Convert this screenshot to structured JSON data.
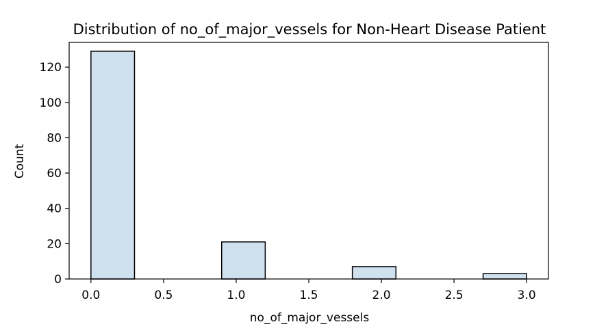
{
  "chart_data": {
    "type": "bar",
    "title": "Distribution of no_of_major_vessels for Non-Heart Disease Patient",
    "xlabel": "no_of_major_vessels",
    "ylabel": "Count",
    "xlim": [
      -0.15,
      3.15
    ],
    "ylim": [
      0,
      134
    ],
    "xticks": [
      0.0,
      0.5,
      1.0,
      1.5,
      2.0,
      2.5,
      3.0
    ],
    "xtick_labels": [
      "0.0",
      "0.5",
      "1.0",
      "1.5",
      "2.0",
      "2.5",
      "3.0"
    ],
    "yticks": [
      0,
      20,
      40,
      60,
      80,
      100,
      120
    ],
    "ytick_labels": [
      "0",
      "20",
      "40",
      "60",
      "80",
      "100",
      "120"
    ],
    "bins": [
      {
        "x_start": 0.0,
        "x_end": 0.3,
        "count": 129
      },
      {
        "x_start": 0.9,
        "x_end": 1.2,
        "count": 21
      },
      {
        "x_start": 1.8,
        "x_end": 2.1,
        "count": 7
      },
      {
        "x_start": 2.7,
        "x_end": 3.0,
        "count": 3
      }
    ],
    "bar_fill": "#cfe0ef",
    "bar_edge": "#000000",
    "grid": false
  }
}
